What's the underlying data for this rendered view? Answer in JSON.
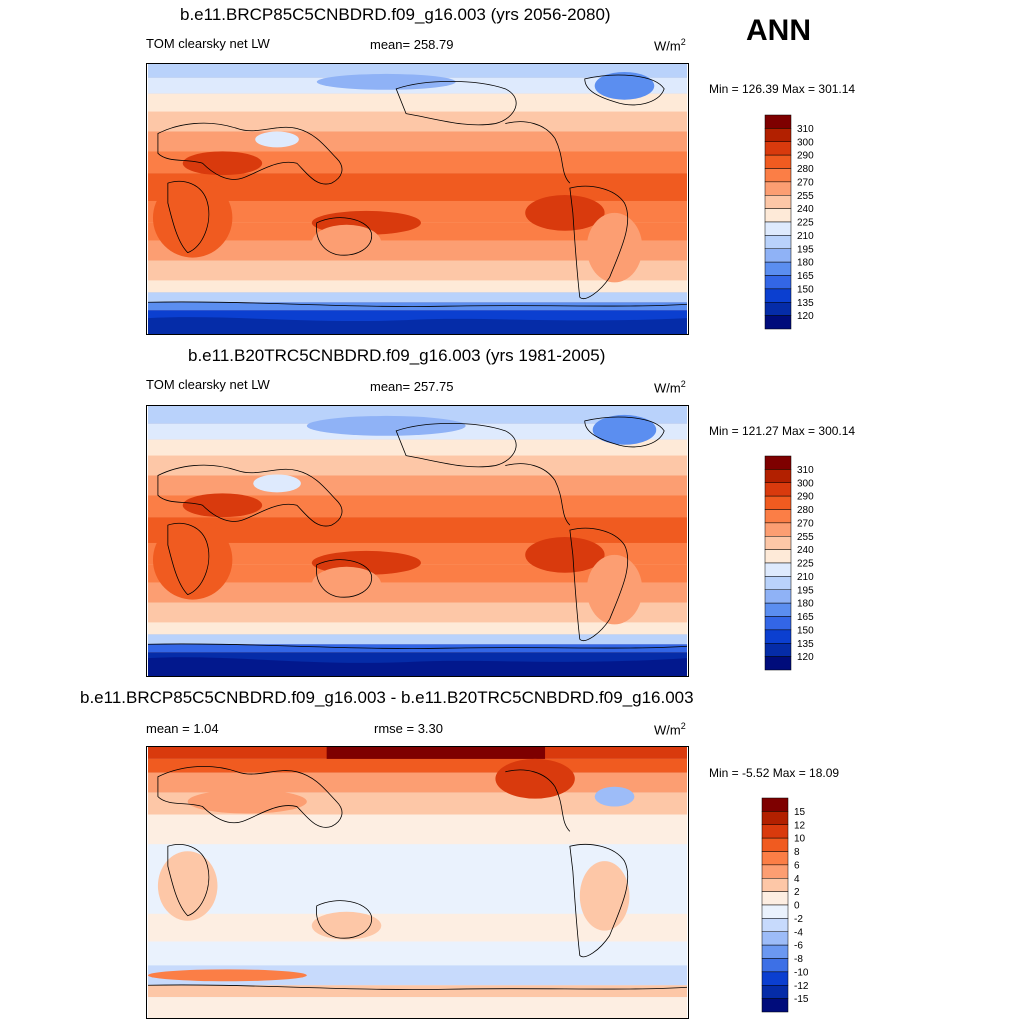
{
  "season": "ANN",
  "variable": "TOM clearsky net LW",
  "units": {
    "base": "W/m",
    "exp": "2"
  },
  "panels": [
    {
      "title": "b.e11.BRCP85C5CNBDRD.f09_g16.003 (yrs 2056-2080)",
      "mean": "mean= 258.79",
      "minmax": "Min = 126.39 Max = 301.14"
    },
    {
      "title": "b.e11.B20TRC5CNBDRD.f09_g16.003 (yrs 1981-2005)",
      "mean": "mean= 257.75",
      "minmax": "Min = 121.27 Max = 300.14"
    },
    {
      "title": "b.e11.BRCP85C5CNBDRD.f09_g16.003 - b.e11.B20TRC5CNBDRD.f09_g16.003",
      "mean": "mean =   1.04",
      "rmse": "rmse =   3.30",
      "minmax": "Min =  -5.52 Max =  18.09"
    }
  ],
  "colorbar_abs": {
    "labels": [
      "310",
      "300",
      "290",
      "280",
      "270",
      "255",
      "240",
      "225",
      "210",
      "195",
      "180",
      "165",
      "150",
      "135",
      "120"
    ],
    "colors": [
      "#7e0000",
      "#b22000",
      "#d93a0d",
      "#f05b20",
      "#fb7e46",
      "#fc9e72",
      "#fdc7a7",
      "#feead8",
      "#deeafd",
      "#b9d2fb",
      "#8fb2f6",
      "#5b8ef0",
      "#3366e6",
      "#0b3fd0",
      "#052ca8",
      "#000c7b"
    ]
  },
  "colorbar_diff": {
    "labels": [
      "15",
      "12",
      "10",
      "8",
      "6",
      "4",
      "2",
      "0",
      "-2",
      "-4",
      "-6",
      "-8",
      "-10",
      "-12",
      "-15"
    ],
    "colors": [
      "#7e0000",
      "#b22000",
      "#d93a0d",
      "#f05b20",
      "#fb7e46",
      "#fc9e72",
      "#fdc7a7",
      "#fdeee2",
      "#eaf2fd",
      "#c7dafc",
      "#9dbcf8",
      "#6b98f1",
      "#3d70e6",
      "#0b3fd0",
      "#052ca8",
      "#000c7b"
    ]
  }
}
